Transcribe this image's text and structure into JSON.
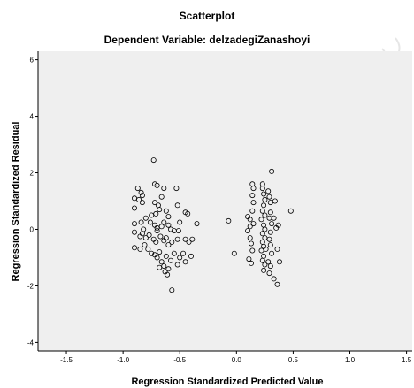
{
  "chart_data": {
    "type": "scatter",
    "title": "Scatterplot",
    "subtitle": "Dependent Variable: delzadegiZanashoyi",
    "xlabel": "Regression Standardized Predicted Value",
    "ylabel": "Regression Standardized Residual",
    "xlim": [
      -1.75,
      1.55
    ],
    "ylim": [
      -4.3,
      6.3
    ],
    "x_ticks": [
      -1.5,
      -1.0,
      -0.5,
      0.0,
      0.5,
      1.0,
      1.5
    ],
    "x_tick_labels": [
      "-1.5",
      "-1.0",
      "-0.5",
      "0.0",
      "0.5",
      "1.0",
      "1.5"
    ],
    "y_ticks": [
      -4,
      -2,
      0,
      2,
      4,
      6
    ],
    "y_tick_labels": [
      "-4",
      "-2",
      "0",
      "2",
      "4",
      "6"
    ],
    "grid": false,
    "legend": "none",
    "colors": {
      "plot_background": "#efefef",
      "marker": "#000000"
    },
    "series": [
      {
        "marker": "open-circle",
        "points": [
          [
            -0.73,
            2.45
          ],
          [
            -0.72,
            1.6
          ],
          [
            -0.7,
            1.55
          ],
          [
            -0.64,
            1.45
          ],
          [
            -0.53,
            1.45
          ],
          [
            -0.87,
            1.45
          ],
          [
            -0.84,
            1.3
          ],
          [
            -0.83,
            1.2
          ],
          [
            -0.86,
            1.05
          ],
          [
            -0.83,
            0.95
          ],
          [
            -0.9,
            1.1
          ],
          [
            -0.9,
            0.75
          ],
          [
            -0.66,
            1.15
          ],
          [
            -0.72,
            0.95
          ],
          [
            -0.69,
            0.85
          ],
          [
            -0.68,
            0.7
          ],
          [
            -0.71,
            0.55
          ],
          [
            -0.75,
            0.5
          ],
          [
            -0.62,
            0.65
          ],
          [
            -0.6,
            0.45
          ],
          [
            -0.52,
            0.85
          ],
          [
            -0.45,
            0.6
          ],
          [
            -0.43,
            0.55
          ],
          [
            -0.5,
            0.25
          ],
          [
            -0.8,
            0.4
          ],
          [
            -0.84,
            0.25
          ],
          [
            -0.9,
            0.2
          ],
          [
            -0.76,
            0.25
          ],
          [
            -0.72,
            0.15
          ],
          [
            -0.7,
            0.05
          ],
          [
            -0.7,
            -0.05
          ],
          [
            -0.66,
            0.1
          ],
          [
            -0.64,
            0.25
          ],
          [
            -0.6,
            0.15
          ],
          [
            -0.58,
            0.0
          ],
          [
            -0.55,
            -0.05
          ],
          [
            -0.51,
            -0.05
          ],
          [
            -0.82,
            0.0
          ],
          [
            -0.83,
            -0.15
          ],
          [
            -0.85,
            -0.25
          ],
          [
            -0.9,
            -0.1
          ],
          [
            -0.8,
            -0.3
          ],
          [
            -0.77,
            -0.2
          ],
          [
            -0.73,
            -0.35
          ],
          [
            -0.71,
            -0.45
          ],
          [
            -0.67,
            -0.25
          ],
          [
            -0.64,
            -0.4
          ],
          [
            -0.62,
            -0.3
          ],
          [
            -0.6,
            -0.55
          ],
          [
            -0.57,
            -0.45
          ],
          [
            -0.52,
            -0.35
          ],
          [
            -0.45,
            -0.35
          ],
          [
            -0.42,
            -0.45
          ],
          [
            -0.39,
            -0.35
          ],
          [
            -0.35,
            0.2
          ],
          [
            -0.9,
            -0.65
          ],
          [
            -0.85,
            -0.7
          ],
          [
            -0.81,
            -0.55
          ],
          [
            -0.78,
            -0.7
          ],
          [
            -0.75,
            -0.85
          ],
          [
            -0.72,
            -0.9
          ],
          [
            -0.7,
            -1.0
          ],
          [
            -0.68,
            -0.8
          ],
          [
            -0.66,
            -1.15
          ],
          [
            -0.64,
            -1.3
          ],
          [
            -0.63,
            -1.5
          ],
          [
            -0.61,
            -1.6
          ],
          [
            -0.62,
            -0.95
          ],
          [
            -0.58,
            -1.1
          ],
          [
            -0.55,
            -0.85
          ],
          [
            -0.52,
            -1.25
          ],
          [
            -0.5,
            -1.0
          ],
          [
            -0.47,
            -0.85
          ],
          [
            -0.45,
            -1.15
          ],
          [
            -0.4,
            -0.95
          ],
          [
            -0.57,
            -2.15
          ],
          [
            -0.68,
            -1.35
          ],
          [
            -0.6,
            -1.4
          ],
          [
            -0.07,
            0.3
          ],
          [
            -0.02,
            -0.85
          ],
          [
            0.1,
            0.45
          ],
          [
            0.12,
            0.35
          ],
          [
            0.12,
            0.1
          ],
          [
            0.1,
            -0.05
          ],
          [
            0.12,
            -0.3
          ],
          [
            0.13,
            -0.5
          ],
          [
            0.14,
            -0.75
          ],
          [
            0.11,
            -1.05
          ],
          [
            0.13,
            -1.2
          ],
          [
            0.14,
            1.6
          ],
          [
            0.15,
            1.45
          ],
          [
            0.14,
            1.2
          ],
          [
            0.15,
            0.95
          ],
          [
            0.14,
            0.65
          ],
          [
            0.15,
            0.2
          ],
          [
            0.23,
            1.6
          ],
          [
            0.23,
            1.45
          ],
          [
            0.24,
            1.25
          ],
          [
            0.25,
            1.05
          ],
          [
            0.24,
            0.85
          ],
          [
            0.23,
            0.65
          ],
          [
            0.25,
            0.5
          ],
          [
            0.22,
            0.35
          ],
          [
            0.24,
            0.15
          ],
          [
            0.25,
            0.0
          ],
          [
            0.23,
            -0.15
          ],
          [
            0.25,
            -0.3
          ],
          [
            0.23,
            -0.45
          ],
          [
            0.24,
            -0.6
          ],
          [
            0.22,
            -0.75
          ],
          [
            0.24,
            -0.95
          ],
          [
            0.23,
            -1.1
          ],
          [
            0.25,
            -1.25
          ],
          [
            0.24,
            -1.45
          ],
          [
            0.26,
            -0.7
          ],
          [
            0.28,
            1.35
          ],
          [
            0.29,
            1.15
          ],
          [
            0.3,
            0.95
          ],
          [
            0.3,
            0.6
          ],
          [
            0.29,
            0.4
          ],
          [
            0.31,
            0.2
          ],
          [
            0.3,
            -0.1
          ],
          [
            0.29,
            -0.35
          ],
          [
            0.3,
            -0.55
          ],
          [
            0.31,
            -0.85
          ],
          [
            0.28,
            -1.15
          ],
          [
            0.3,
            -1.3
          ],
          [
            0.29,
            -1.55
          ],
          [
            0.31,
            2.05
          ],
          [
            0.33,
            0.4
          ],
          [
            0.34,
            1.0
          ],
          [
            0.35,
            0.05
          ],
          [
            0.37,
            0.15
          ],
          [
            0.36,
            -0.7
          ],
          [
            0.38,
            -1.15
          ],
          [
            0.33,
            -1.75
          ],
          [
            0.36,
            -1.95
          ],
          [
            0.48,
            0.65
          ]
        ]
      }
    ]
  }
}
